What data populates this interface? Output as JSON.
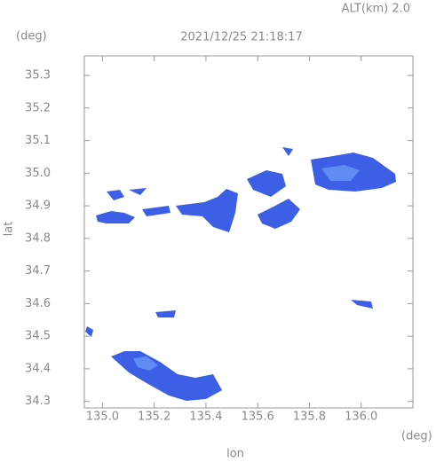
{
  "header": {
    "altitude": "ALT(km) 2.0",
    "timestamp": "2021/12/25 21:18:17"
  },
  "chart_data": {
    "type": "map",
    "y_unit": "(deg)",
    "x_unit": "(deg)",
    "ylabel": "lat",
    "xlabel": "lon",
    "xlim": [
      134.93,
      136.2
    ],
    "ylim": [
      34.28,
      35.36
    ],
    "xticks": [
      {
        "value": 135,
        "label": "135.0"
      },
      135.2,
      135.4,
      135.6,
      135.8,
      {
        "value": 136,
        "label": "136.0"
      }
    ],
    "yticks": [
      34.3,
      34.4,
      34.5,
      34.6,
      34.7,
      34.8,
      34.9,
      {
        "value": 35,
        "label": "35.0"
      },
      35.1,
      35.2,
      35.3
    ]
  }
}
